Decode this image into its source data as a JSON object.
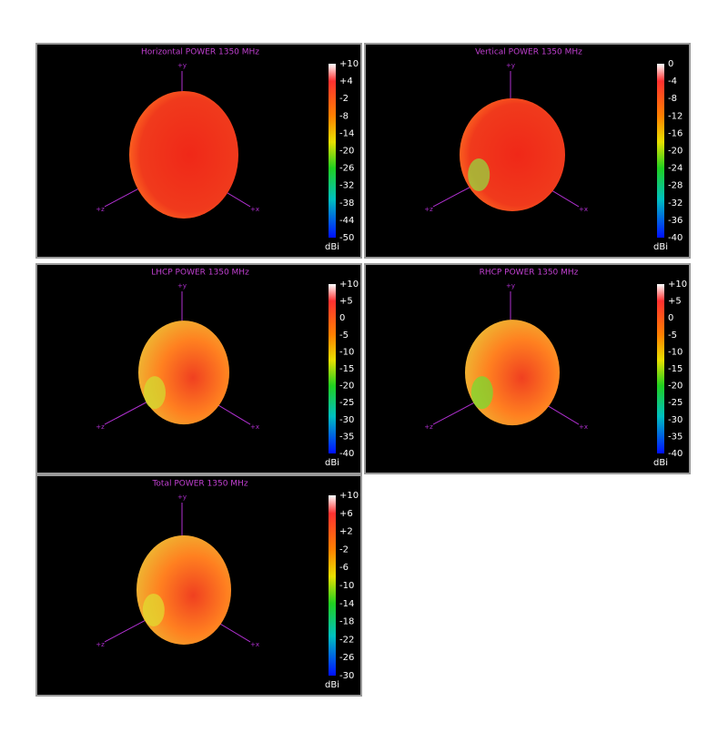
{
  "panels": [
    {
      "title": "Horizontal POWER 1350  MHz",
      "colorbar": {
        "ticks": [
          {
            "value": 10,
            "label": "+10"
          },
          {
            "value": 4,
            "label": "+4"
          },
          -2,
          -8,
          -14,
          -20,
          -26,
          -32,
          -38,
          -44,
          -50
        ],
        "unit": "dBi"
      },
      "axes": {
        "y": "+y",
        "z": "+z",
        "x": "+x"
      }
    },
    {
      "title": "Vertical POWER 1350  MHz",
      "colorbar": {
        "ticks": [
          0,
          -4,
          -8,
          -12,
          -16,
          -20,
          -24,
          -28,
          -32,
          -36,
          -40
        ],
        "unit": "dBi"
      },
      "axes": {
        "y": "+y",
        "z": "+z",
        "x": "+x"
      }
    },
    {
      "title": "LHCP POWER 1350  MHz",
      "colorbar": {
        "ticks": [
          {
            "value": 10,
            "label": "+10"
          },
          {
            "value": 5,
            "label": "+5"
          },
          0,
          -5,
          -10,
          -15,
          -20,
          -25,
          -30,
          -35,
          -40
        ],
        "unit": "dBi"
      },
      "axes": {
        "y": "+y",
        "z": "+z",
        "x": "+x"
      }
    },
    {
      "title": "RHCP POWER 1350  MHz",
      "colorbar": {
        "ticks": [
          {
            "value": 10,
            "label": "+10"
          },
          {
            "value": 5,
            "label": "+5"
          },
          0,
          -5,
          -10,
          -15,
          -20,
          -25,
          -30,
          -35,
          -40
        ],
        "unit": "dBi"
      },
      "axes": {
        "y": "+y",
        "z": "+z",
        "x": "+x"
      }
    },
    {
      "title": "Total POWER 1350  MHz",
      "colorbar": {
        "ticks": [
          {
            "value": 10,
            "label": "+10"
          },
          {
            "value": 6,
            "label": "+6"
          },
          {
            "value": 2,
            "label": "+2"
          },
          -2,
          -6,
          -10,
          -14,
          -18,
          -22,
          -26,
          -30
        ],
        "unit": "dBi"
      },
      "axes": {
        "y": "+y",
        "z": "+z",
        "x": "+x"
      }
    }
  ]
}
